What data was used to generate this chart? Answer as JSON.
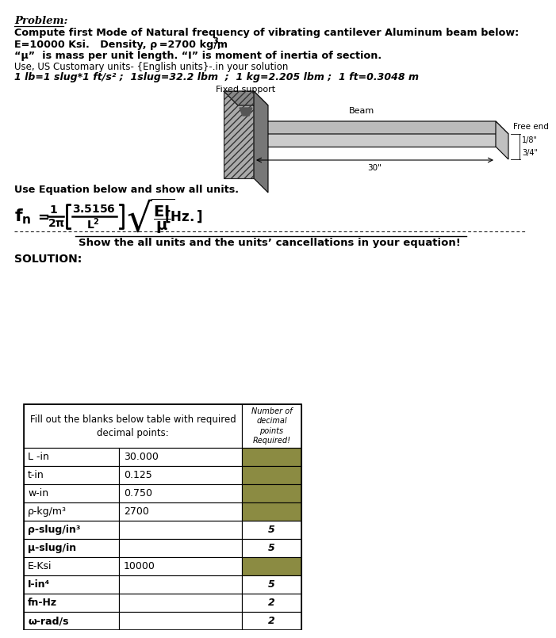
{
  "title_problem": "Problem:",
  "line1": "Compute first Mode of Natural frequency of vibrating cantilever Aluminum beam below:",
  "line2_main": "E=10000 Ksi.   Density, ρ =2700 kg/m",
  "line2_super": "3",
  "line2_comma": ",",
  "line3": "“μ”  is mass per unit length. “I” is moment of inertia of section.",
  "line4": "Use, US Customary units- {English units}-.in your solution",
  "line5": "1 lb=1 slug*1 ft/s² ;  1slug=32.2 lbm  ;  1 kg=2.205 lbm ;  1 ft=0.3048 m",
  "beam_label": "Beam",
  "fixed_support_label": "Fixed support",
  "free_end_label": "Free end",
  "dim_30": "30\"",
  "dim_18": "1/8\"",
  "dim_34": "3/4\"",
  "eq_intro": "Use Equation below and show all units.",
  "show_units_text": "Show the all units and the units’ cancellations in your equation!",
  "solution_label": "SOLUTION:",
  "table_header_left": "Fill out the blanks below table with required\ndecimal points:",
  "table_header_right": "Number of\ndecimal\npoints\nRequired!",
  "row_labels": [
    "L -in",
    "t-in",
    "w-in",
    "ρ-kg/m³",
    "ρ-slug/in³",
    "μ-slug/in",
    "E-Ksi",
    "I-in⁴",
    "fn-Hz",
    "ω-rad/s"
  ],
  "row_values": [
    "30.000",
    "0.125",
    "0.750",
    "2700",
    "",
    "",
    "10000",
    "",
    "",
    ""
  ],
  "row_decimals": [
    "",
    "",
    "",
    "",
    "5",
    "5",
    "",
    "5",
    "2",
    "2"
  ],
  "row_bold": [
    false,
    false,
    false,
    false,
    true,
    true,
    false,
    true,
    true,
    true
  ],
  "row_olive_right": [
    true,
    true,
    true,
    true,
    false,
    false,
    true,
    false,
    false,
    false
  ],
  "olive": "#8B8B42",
  "bg_color": "#ffffff"
}
